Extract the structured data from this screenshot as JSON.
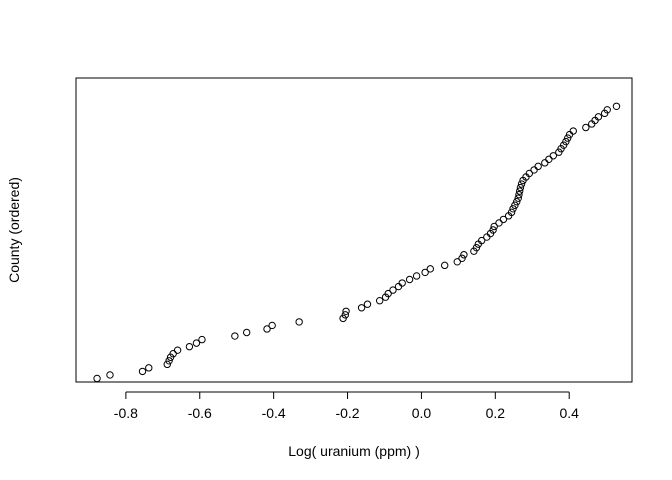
{
  "chart_data": {
    "type": "scatter",
    "title": "",
    "xlabel": "Log( uranium (ppm) )",
    "ylabel": "County (ordered)",
    "xlim": [
      -0.935,
      0.57
    ],
    "ylim": [
      0,
      86
    ],
    "x_ticks": [
      -0.8,
      -0.6,
      -0.4,
      -0.2,
      0.0,
      0.2,
      0.4
    ],
    "x_tick_labels": [
      "-0.8",
      "-0.6",
      "-0.4",
      "-0.2",
      "0.0",
      "0.2",
      "0.4"
    ],
    "y_ticks": [],
    "grid": false,
    "legend": "none",
    "marker": "open-circle",
    "colors": {
      "marker": "#000000",
      "axis": "#000000",
      "background": "#ffffff"
    },
    "points": [
      {
        "x": -0.878,
        "y": 1
      },
      {
        "x": -0.843,
        "y": 2
      },
      {
        "x": -0.755,
        "y": 3
      },
      {
        "x": -0.738,
        "y": 4
      },
      {
        "x": -0.688,
        "y": 5
      },
      {
        "x": -0.683,
        "y": 6
      },
      {
        "x": -0.679,
        "y": 7
      },
      {
        "x": -0.672,
        "y": 8
      },
      {
        "x": -0.66,
        "y": 9
      },
      {
        "x": -0.628,
        "y": 10
      },
      {
        "x": -0.609,
        "y": 11
      },
      {
        "x": -0.594,
        "y": 12
      },
      {
        "x": -0.505,
        "y": 13
      },
      {
        "x": -0.473,
        "y": 14
      },
      {
        "x": -0.418,
        "y": 15
      },
      {
        "x": -0.404,
        "y": 16
      },
      {
        "x": -0.331,
        "y": 17
      },
      {
        "x": -0.212,
        "y": 18
      },
      {
        "x": -0.206,
        "y": 19
      },
      {
        "x": -0.204,
        "y": 20
      },
      {
        "x": -0.162,
        "y": 21
      },
      {
        "x": -0.146,
        "y": 22
      },
      {
        "x": -0.113,
        "y": 23
      },
      {
        "x": -0.097,
        "y": 24
      },
      {
        "x": -0.09,
        "y": 25
      },
      {
        "x": -0.077,
        "y": 26
      },
      {
        "x": -0.062,
        "y": 27
      },
      {
        "x": -0.052,
        "y": 28
      },
      {
        "x": -0.032,
        "y": 29
      },
      {
        "x": -0.013,
        "y": 30
      },
      {
        "x": 0.01,
        "y": 31
      },
      {
        "x": 0.024,
        "y": 32
      },
      {
        "x": 0.063,
        "y": 33
      },
      {
        "x": 0.097,
        "y": 34
      },
      {
        "x": 0.11,
        "y": 35
      },
      {
        "x": 0.115,
        "y": 36
      },
      {
        "x": 0.142,
        "y": 37
      },
      {
        "x": 0.149,
        "y": 38
      },
      {
        "x": 0.154,
        "y": 39
      },
      {
        "x": 0.163,
        "y": 40
      },
      {
        "x": 0.177,
        "y": 41
      },
      {
        "x": 0.187,
        "y": 42
      },
      {
        "x": 0.194,
        "y": 43
      },
      {
        "x": 0.197,
        "y": 44
      },
      {
        "x": 0.21,
        "y": 45
      },
      {
        "x": 0.222,
        "y": 46
      },
      {
        "x": 0.236,
        "y": 47
      },
      {
        "x": 0.244,
        "y": 48
      },
      {
        "x": 0.248,
        "y": 49
      },
      {
        "x": 0.253,
        "y": 50
      },
      {
        "x": 0.258,
        "y": 51
      },
      {
        "x": 0.262,
        "y": 52
      },
      {
        "x": 0.264,
        "y": 53
      },
      {
        "x": 0.266,
        "y": 54
      },
      {
        "x": 0.268,
        "y": 55
      },
      {
        "x": 0.271,
        "y": 56
      },
      {
        "x": 0.275,
        "y": 57
      },
      {
        "x": 0.283,
        "y": 58
      },
      {
        "x": 0.292,
        "y": 59
      },
      {
        "x": 0.305,
        "y": 60
      },
      {
        "x": 0.316,
        "y": 61
      },
      {
        "x": 0.334,
        "y": 62
      },
      {
        "x": 0.345,
        "y": 63
      },
      {
        "x": 0.357,
        "y": 64
      },
      {
        "x": 0.372,
        "y": 65
      },
      {
        "x": 0.378,
        "y": 66
      },
      {
        "x": 0.385,
        "y": 67
      },
      {
        "x": 0.391,
        "y": 68
      },
      {
        "x": 0.396,
        "y": 69
      },
      {
        "x": 0.401,
        "y": 70
      },
      {
        "x": 0.411,
        "y": 71
      },
      {
        "x": 0.445,
        "y": 72
      },
      {
        "x": 0.461,
        "y": 73
      },
      {
        "x": 0.47,
        "y": 74
      },
      {
        "x": 0.479,
        "y": 75
      },
      {
        "x": 0.496,
        "y": 76
      },
      {
        "x": 0.503,
        "y": 77
      },
      {
        "x": 0.528,
        "y": 78
      }
    ]
  }
}
